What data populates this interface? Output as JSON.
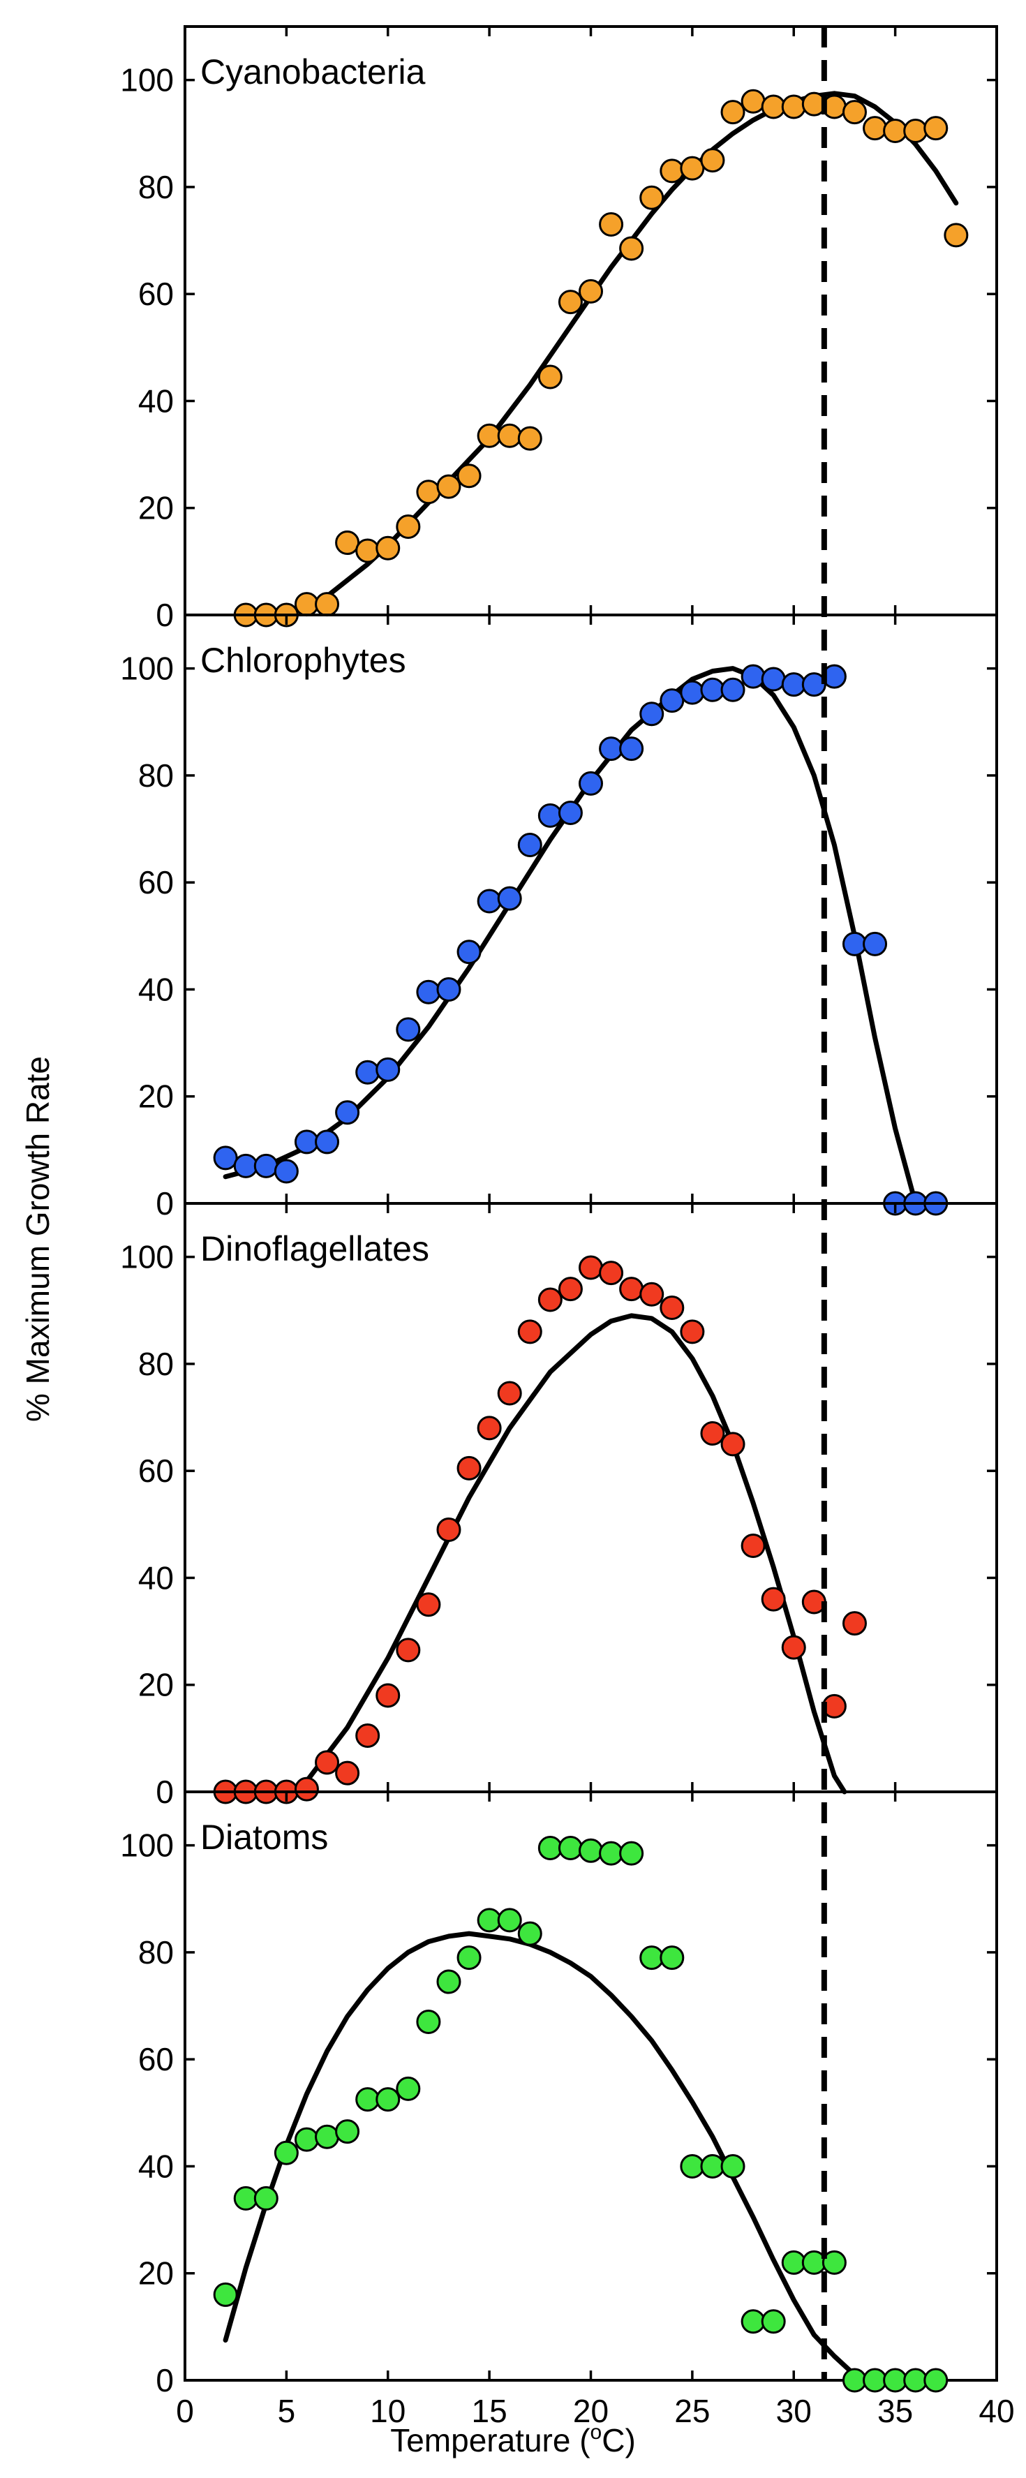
{
  "figure": {
    "ylabel": "% Maximum Growth Rate",
    "xlabel": "Temperature (°C)",
    "xlabel_main": "Temperature (",
    "xlabel_sup": "o",
    "xlabel_unit": "C)",
    "xlim": [
      0,
      40
    ],
    "xticks": [
      0,
      5,
      10,
      15,
      20,
      25,
      30,
      35,
      40
    ],
    "yticks": [
      0,
      20,
      40,
      60,
      80,
      100
    ],
    "reference_line_x": 31.5
  },
  "chart_data": [
    {
      "type": "scatter",
      "title": "Cyanobacteria",
      "color": "#f5a12a",
      "ylim": [
        0,
        110
      ],
      "points": [
        [
          3,
          0
        ],
        [
          4,
          0
        ],
        [
          5,
          0
        ],
        [
          6,
          2
        ],
        [
          7,
          2
        ],
        [
          8,
          13.5
        ],
        [
          9,
          12
        ],
        [
          10,
          12.5
        ],
        [
          11,
          16.5
        ],
        [
          12,
          23
        ],
        [
          13,
          24
        ],
        [
          14,
          26
        ],
        [
          15,
          33.5
        ],
        [
          16,
          33.5
        ],
        [
          17,
          33
        ],
        [
          18,
          44.5
        ],
        [
          19,
          58.5
        ],
        [
          20,
          60.5
        ],
        [
          21,
          73
        ],
        [
          22,
          68.5
        ],
        [
          23,
          78
        ],
        [
          24,
          83
        ],
        [
          25,
          83.5
        ],
        [
          26,
          85
        ],
        [
          27,
          94
        ],
        [
          28,
          96
        ],
        [
          29,
          95
        ],
        [
          30,
          95
        ],
        [
          31,
          95.5
        ],
        [
          32,
          95
        ],
        [
          33,
          94
        ],
        [
          34,
          91
        ],
        [
          35,
          90.5
        ],
        [
          36,
          90.5
        ],
        [
          37,
          91
        ],
        [
          38,
          71
        ]
      ],
      "fit": [
        [
          5,
          0
        ],
        [
          6,
          1.5
        ],
        [
          7,
          3.5
        ],
        [
          8,
          6.5
        ],
        [
          9,
          9.5
        ],
        [
          10,
          13
        ],
        [
          11,
          17
        ],
        [
          12,
          21
        ],
        [
          13,
          25
        ],
        [
          14,
          29
        ],
        [
          15,
          33
        ],
        [
          16,
          38
        ],
        [
          17,
          43
        ],
        [
          18,
          48.5
        ],
        [
          19,
          54
        ],
        [
          20,
          59.5
        ],
        [
          21,
          65
        ],
        [
          22,
          70
        ],
        [
          23,
          75
        ],
        [
          24,
          79.5
        ],
        [
          25,
          83.5
        ],
        [
          26,
          87
        ],
        [
          27,
          90
        ],
        [
          28,
          92.5
        ],
        [
          29,
          94.5
        ],
        [
          30,
          96
        ],
        [
          31,
          97
        ],
        [
          32,
          97.5
        ],
        [
          33,
          97
        ],
        [
          34,
          95
        ],
        [
          35,
          92
        ],
        [
          36,
          88
        ],
        [
          37,
          83
        ],
        [
          38,
          77
        ]
      ]
    },
    {
      "type": "scatter",
      "title": "Chlorophytes",
      "color": "#2f64f0",
      "ylim": [
        0,
        110
      ],
      "points": [
        [
          2,
          8.5
        ],
        [
          3,
          7
        ],
        [
          4,
          7
        ],
        [
          5,
          6
        ],
        [
          6,
          11.5
        ],
        [
          7,
          11.5
        ],
        [
          8,
          17
        ],
        [
          9,
          24.5
        ],
        [
          10,
          25
        ],
        [
          11,
          32.5
        ],
        [
          12,
          39.5
        ],
        [
          13,
          40
        ],
        [
          14,
          47
        ],
        [
          15,
          56.5
        ],
        [
          16,
          57
        ],
        [
          17,
          67
        ],
        [
          18,
          72.5
        ],
        [
          19,
          73
        ],
        [
          20,
          78.5
        ],
        [
          21,
          85
        ],
        [
          22,
          85
        ],
        [
          23,
          91.5
        ],
        [
          24,
          94
        ],
        [
          25,
          95.5
        ],
        [
          26,
          96
        ],
        [
          27,
          96
        ],
        [
          28,
          98.5
        ],
        [
          29,
          98
        ],
        [
          30,
          97
        ],
        [
          31,
          97
        ],
        [
          32,
          98.5
        ],
        [
          33,
          48.5
        ],
        [
          34,
          48.5
        ],
        [
          35,
          0
        ],
        [
          36,
          0
        ],
        [
          37,
          0
        ]
      ],
      "fit": [
        [
          2,
          5
        ],
        [
          4,
          7
        ],
        [
          6,
          10.5
        ],
        [
          8,
          16
        ],
        [
          10,
          23.5
        ],
        [
          12,
          33
        ],
        [
          14,
          44
        ],
        [
          16,
          56
        ],
        [
          18,
          68
        ],
        [
          20,
          79
        ],
        [
          22,
          88.5
        ],
        [
          24,
          95
        ],
        [
          25,
          98
        ],
        [
          26,
          99.5
        ],
        [
          27,
          100
        ],
        [
          28,
          98.5
        ],
        [
          29,
          95
        ],
        [
          30,
          89
        ],
        [
          31,
          80
        ],
        [
          32,
          67
        ],
        [
          33,
          50
        ],
        [
          34,
          31
        ],
        [
          35,
          14
        ],
        [
          36,
          0
        ]
      ]
    },
    {
      "type": "scatter",
      "title": "Dinoflagellates",
      "color": "#f03a20",
      "ylim": [
        0,
        110
      ],
      "points": [
        [
          2,
          0
        ],
        [
          3,
          0
        ],
        [
          4,
          0
        ],
        [
          5,
          0
        ],
        [
          6,
          0.5
        ],
        [
          7,
          5.5
        ],
        [
          8,
          3.5
        ],
        [
          9,
          10.5
        ],
        [
          10,
          18
        ],
        [
          11,
          26.5
        ],
        [
          12,
          35
        ],
        [
          13,
          49
        ],
        [
          14,
          60.5
        ],
        [
          15,
          68
        ],
        [
          16,
          74.5
        ],
        [
          17,
          86
        ],
        [
          18,
          92
        ],
        [
          19,
          94
        ],
        [
          20,
          98
        ],
        [
          21,
          97
        ],
        [
          22,
          94
        ],
        [
          23,
          93
        ],
        [
          24,
          90.5
        ],
        [
          25,
          86
        ],
        [
          26,
          67
        ],
        [
          27,
          65
        ],
        [
          28,
          46
        ],
        [
          29,
          36
        ],
        [
          30,
          27
        ],
        [
          31,
          35.5
        ],
        [
          32,
          16
        ],
        [
          33,
          31.5
        ]
      ],
      "fit": [
        [
          5.5,
          0
        ],
        [
          6,
          2
        ],
        [
          8,
          12
        ],
        [
          10,
          25
        ],
        [
          12,
          40
        ],
        [
          14,
          55
        ],
        [
          16,
          68
        ],
        [
          18,
          78.5
        ],
        [
          20,
          85.5
        ],
        [
          21,
          88
        ],
        [
          22,
          89
        ],
        [
          23,
          88.5
        ],
        [
          24,
          86
        ],
        [
          25,
          81
        ],
        [
          26,
          74
        ],
        [
          27,
          65
        ],
        [
          28,
          54
        ],
        [
          29,
          42
        ],
        [
          30,
          29
        ],
        [
          31,
          15
        ],
        [
          32,
          3
        ],
        [
          32.5,
          0
        ]
      ]
    },
    {
      "type": "scatter",
      "title": "Diatoms",
      "color": "#3ee63e",
      "ylim": [
        0,
        110
      ],
      "points": [
        [
          2,
          16
        ],
        [
          3,
          34
        ],
        [
          4,
          34
        ],
        [
          5,
          42.5
        ],
        [
          6,
          45
        ],
        [
          7,
          45.5
        ],
        [
          8,
          46.5
        ],
        [
          9,
          52.5
        ],
        [
          10,
          52.5
        ],
        [
          11,
          54.5
        ],
        [
          12,
          67
        ],
        [
          13,
          74.5
        ],
        [
          14,
          79
        ],
        [
          15,
          86
        ],
        [
          16,
          86
        ],
        [
          17,
          83.5
        ],
        [
          18,
          99.5
        ],
        [
          19,
          99.5
        ],
        [
          20,
          99
        ],
        [
          21,
          98.5
        ],
        [
          22,
          98.5
        ],
        [
          23,
          79
        ],
        [
          24,
          79
        ],
        [
          25,
          40
        ],
        [
          26,
          40
        ],
        [
          27,
          40
        ],
        [
          28,
          11
        ],
        [
          29,
          11
        ],
        [
          30,
          22
        ],
        [
          31,
          22
        ],
        [
          32,
          22
        ],
        [
          33,
          0
        ],
        [
          34,
          0
        ],
        [
          35,
          0
        ],
        [
          36,
          0
        ],
        [
          37,
          0
        ]
      ],
      "fit": [
        [
          2,
          7.5
        ],
        [
          3,
          21
        ],
        [
          4,
          33
        ],
        [
          5,
          44
        ],
        [
          6,
          53.5
        ],
        [
          7,
          61.5
        ],
        [
          8,
          68
        ],
        [
          9,
          73
        ],
        [
          10,
          77
        ],
        [
          11,
          80
        ],
        [
          12,
          82
        ],
        [
          13,
          83
        ],
        [
          14,
          83.5
        ],
        [
          15,
          83
        ],
        [
          16,
          82.5
        ],
        [
          17,
          81.5
        ],
        [
          18,
          80
        ],
        [
          19,
          78
        ],
        [
          20,
          75.5
        ],
        [
          21,
          72
        ],
        [
          22,
          68
        ],
        [
          23,
          63.5
        ],
        [
          24,
          58
        ],
        [
          25,
          52
        ],
        [
          26,
          45.5
        ],
        [
          27,
          38
        ],
        [
          28,
          30.5
        ],
        [
          29,
          22.5
        ],
        [
          30,
          15
        ],
        [
          31,
          8.5
        ],
        [
          32,
          4.5
        ],
        [
          33,
          1
        ],
        [
          34,
          0
        ]
      ]
    }
  ]
}
